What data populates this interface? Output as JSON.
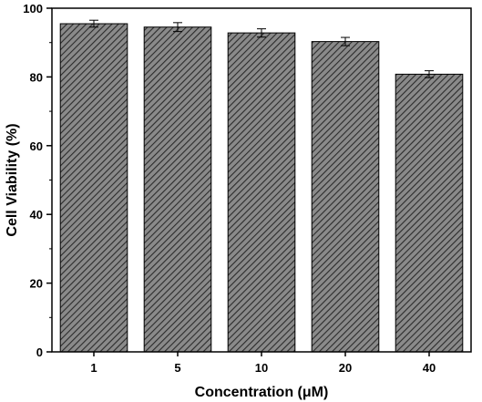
{
  "chart_data": {
    "type": "bar",
    "title": "",
    "xlabel": "Concentration (μM)",
    "ylabel": "Cell Viability (%)",
    "categories": [
      "1",
      "5",
      "10",
      "20",
      "40"
    ],
    "values": [
      95.5,
      94.5,
      92.8,
      90.3,
      80.8
    ],
    "errors": [
      1.0,
      1.3,
      1.2,
      1.2,
      1.0
    ],
    "ylim": [
      0,
      100
    ],
    "yticks": [
      0,
      20,
      40,
      60,
      80,
      100
    ],
    "grid": false,
    "bar_fill": "hatched",
    "colors": {
      "bar_base": "#8a8a8a",
      "hatch": "#2b2b2b",
      "axis": "#000000"
    }
  }
}
